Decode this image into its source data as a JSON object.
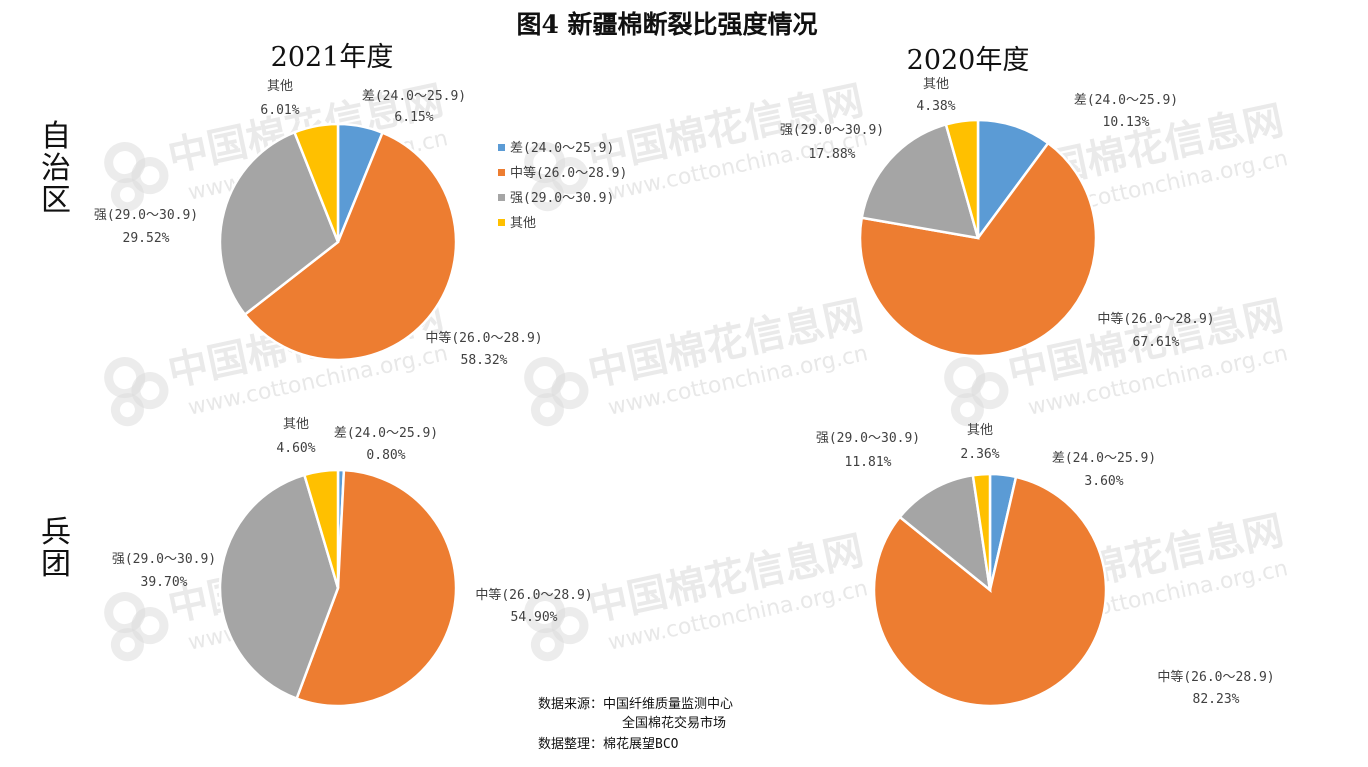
{
  "title": "图4 新疆棉断裂比强度情况",
  "row_labels": [
    "自治区",
    "兵团"
  ],
  "colors": {
    "差": "#5B9BD5",
    "中等": "#ED7D31",
    "强": "#A5A5A5",
    "其他": "#FFC000"
  },
  "legend": [
    "差(24.0～25.9)",
    "中等(26.0～28.9)",
    "强(29.0～30.9)",
    "其他"
  ],
  "watermark": {
    "cn": "中国棉花信息网",
    "en": "www.cottonchina.org.cn",
    "logo_icon": "cotton-logo-icon"
  },
  "source": {
    "line1": "数据来源：中国纤维质量监测中心",
    "line2": "全国棉花交易市场",
    "line3": "数据整理：棉花展望BCO"
  },
  "chart_data": [
    {
      "type": "pie",
      "group": "自治区",
      "title": "2021年度",
      "slices": [
        {
          "key": "差",
          "name": "差(24.0～25.9)",
          "value": 6.15,
          "label": "6.15%"
        },
        {
          "key": "中等",
          "name": "中等(26.0～28.9)",
          "value": 58.32,
          "label": "58.32%"
        },
        {
          "key": "强",
          "name": "强(29.0～30.9)",
          "value": 29.52,
          "label": "29.52%"
        },
        {
          "key": "其他",
          "name": "其他",
          "value": 6.01,
          "label": "6.01%"
        }
      ],
      "legend_position": "right"
    },
    {
      "type": "pie",
      "group": "自治区",
      "title": "2020年度",
      "slices": [
        {
          "key": "差",
          "name": "差(24.0～25.9)",
          "value": 10.13,
          "label": "10.13%"
        },
        {
          "key": "中等",
          "name": "中等(26.0～28.9)",
          "value": 67.61,
          "label": "67.61%"
        },
        {
          "key": "强",
          "name": "强(29.0～30.9)",
          "value": 17.88,
          "label": "17.88%"
        },
        {
          "key": "其他",
          "name": "其他",
          "value": 4.38,
          "label": "4.38%"
        }
      ]
    },
    {
      "type": "pie",
      "group": "兵团",
      "title": "",
      "slices": [
        {
          "key": "差",
          "name": "差(24.0～25.9)",
          "value": 0.8,
          "label": "0.80%"
        },
        {
          "key": "中等",
          "name": "中等(26.0～28.9)",
          "value": 54.9,
          "label": "54.90%"
        },
        {
          "key": "强",
          "name": "强(29.0～30.9)",
          "value": 39.7,
          "label": "39.70%"
        },
        {
          "key": "其他",
          "name": "其他",
          "value": 4.6,
          "label": "4.60%"
        }
      ]
    },
    {
      "type": "pie",
      "group": "兵团",
      "title": "",
      "slices": [
        {
          "key": "差",
          "name": "差(24.0～25.9)",
          "value": 3.6,
          "label": "3.60%"
        },
        {
          "key": "中等",
          "name": "中等(26.0～28.9)",
          "value": 82.23,
          "label": "82.23%"
        },
        {
          "key": "强",
          "name": "强(29.0～30.9)",
          "value": 11.81,
          "label": "11.81%"
        },
        {
          "key": "其他",
          "name": "其他",
          "value": 2.36,
          "label": "2.36%"
        }
      ]
    }
  ]
}
